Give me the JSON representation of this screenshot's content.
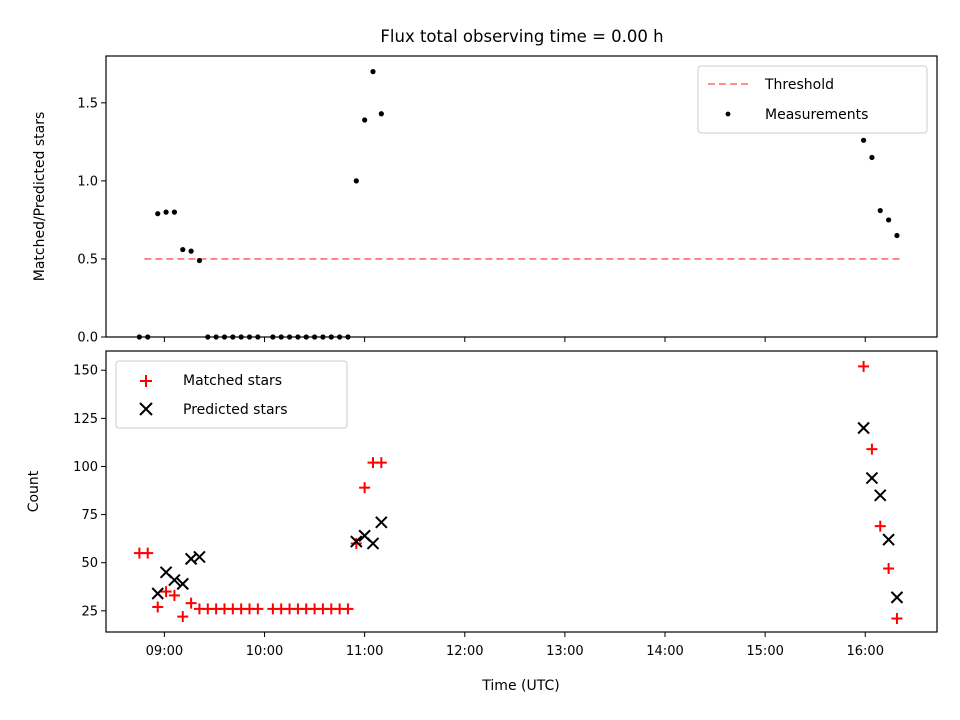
{
  "chart_data": [
    {
      "type": "scatter",
      "title": "Flux total observing time = 0.00 h",
      "xlabel": "",
      "ylabel": "Matched/Predicted stars",
      "ylim": [
        0.0,
        1.8
      ],
      "yticks": [
        "0.0",
        "0.5",
        "1.0",
        "1.5"
      ],
      "ytick_values": [
        0.0,
        0.5,
        1.0,
        1.5
      ],
      "xlim": [
        "08:25",
        "16:43"
      ],
      "legend_position": "top-right",
      "legend": [
        "Threshold",
        "Measurements"
      ],
      "colors": {
        "threshold": "#ff7f7f",
        "measurements": "#000000"
      },
      "series": [
        {
          "name": "Threshold",
          "kind": "dashed-line",
          "x": [
            "08:48",
            "16:22"
          ],
          "y": [
            0.5,
            0.5
          ]
        },
        {
          "name": "Measurements",
          "kind": "points",
          "x": [
            "08:45",
            "08:50",
            "08:56",
            "09:01",
            "09:06",
            "09:11",
            "09:16",
            "09:21",
            "09:26",
            "09:31",
            "09:36",
            "09:41",
            "09:46",
            "09:51",
            "09:56",
            "10:05",
            "10:10",
            "10:15",
            "10:20",
            "10:25",
            "10:30",
            "10:35",
            "10:40",
            "10:45",
            "10:50",
            "10:55",
            "11:00",
            "11:05",
            "11:10",
            "15:59",
            "16:04",
            "16:09",
            "16:14",
            "16:19"
          ],
          "y": [
            0.0,
            0.0,
            0.79,
            0.8,
            0.8,
            0.56,
            0.55,
            0.49,
            0.0,
            0.0,
            0.0,
            0.0,
            0.0,
            0.0,
            0.0,
            0.0,
            0.0,
            0.0,
            0.0,
            0.0,
            0.0,
            0.0,
            0.0,
            0.0,
            0.0,
            1.0,
            1.39,
            1.7,
            1.43,
            1.26,
            1.15,
            0.81,
            0.75,
            0.65
          ]
        }
      ]
    },
    {
      "type": "scatter",
      "title": "",
      "xlabel": "Time (UTC)",
      "ylabel": "Count",
      "ylim": [
        14,
        160
      ],
      "yticks": [
        "25",
        "50",
        "75",
        "100",
        "125",
        "150"
      ],
      "ytick_values": [
        25,
        50,
        75,
        100,
        125,
        150
      ],
      "xlim": [
        "08:25",
        "16:43"
      ],
      "xticks": [
        "09:00",
        "10:00",
        "11:00",
        "12:00",
        "13:00",
        "14:00",
        "15:00",
        "16:00"
      ],
      "legend_position": "top-left",
      "legend": [
        "Matched stars",
        "Predicted stars"
      ],
      "colors": {
        "matched": "#ff0000",
        "predicted": "#000000"
      },
      "series": [
        {
          "name": "Matched stars",
          "marker": "plus",
          "x": [
            "08:45",
            "08:50",
            "08:56",
            "09:01",
            "09:06",
            "09:11",
            "09:16",
            "09:21",
            "09:26",
            "09:31",
            "09:36",
            "09:41",
            "09:46",
            "09:51",
            "09:56",
            "10:05",
            "10:10",
            "10:15",
            "10:20",
            "10:25",
            "10:30",
            "10:35",
            "10:40",
            "10:45",
            "10:50",
            "10:55",
            "11:00",
            "11:05",
            "11:10",
            "15:59",
            "16:04",
            "16:09",
            "16:14",
            "16:19"
          ],
          "y": [
            55,
            55,
            27,
            35,
            33,
            22,
            29,
            26,
            26,
            26,
            26,
            26,
            26,
            26,
            26,
            26,
            26,
            26,
            26,
            26,
            26,
            26,
            26,
            26,
            26,
            60,
            89,
            102,
            102,
            152,
            109,
            69,
            47,
            21
          ]
        },
        {
          "name": "Predicted stars",
          "marker": "x",
          "x": [
            "08:56",
            "09:01",
            "09:06",
            "09:11",
            "09:16",
            "09:21",
            "10:55",
            "11:00",
            "11:05",
            "11:10",
            "15:59",
            "16:04",
            "16:09",
            "16:14",
            "16:19"
          ],
          "y": [
            34,
            45,
            41,
            39,
            52,
            53,
            61,
            64,
            60,
            71,
            120,
            94,
            85,
            62,
            32
          ]
        }
      ]
    }
  ]
}
